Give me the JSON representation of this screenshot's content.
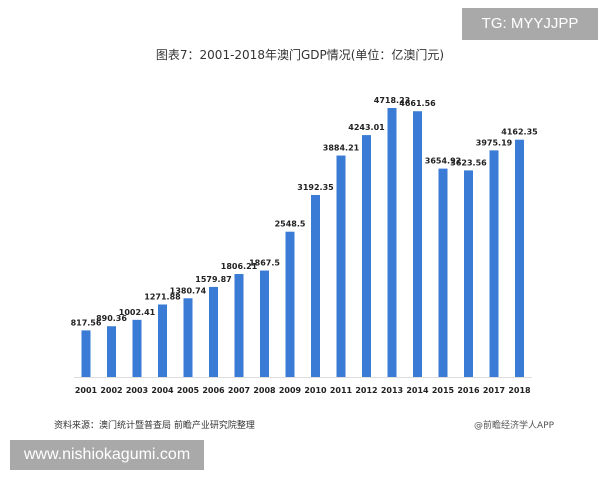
{
  "chart_data": {
    "type": "bar",
    "title": "图表7：2001-2018年澳门GDP情况(单位：亿澳门元)",
    "categories": [
      "2001",
      "2002",
      "2003",
      "2004",
      "2005",
      "2006",
      "2007",
      "2008",
      "2009",
      "2010",
      "2011",
      "2012",
      "2013",
      "2014",
      "2015",
      "2016",
      "2017",
      "2018"
    ],
    "values": [
      817.56,
      890.36,
      1002.41,
      1271.88,
      1380.74,
      1579.87,
      1806.21,
      1867.5,
      2548.5,
      3192.35,
      3884.21,
      4243.01,
      4718.23,
      4661.56,
      3654.92,
      3623.56,
      3975.19,
      4162.35
    ],
    "data_labels": [
      "817.56",
      "890.36",
      "1002.41",
      "1271.88",
      "1380.74",
      "1579.87",
      "1806.21",
      "1867.5",
      "2548.5",
      "3192.35",
      "3884.21",
      "4243.01",
      "4718.23",
      "4661.56",
      "3654.92",
      "3623.56",
      "3975.19",
      "4162.35"
    ],
    "xlabel": "",
    "ylabel": "",
    "ylim": [
      0,
      4718.23
    ],
    "grid": false,
    "bar_color": "#3a7bd5"
  },
  "footer": {
    "source": "资料来源：澳门统计暨普查局 前瞻产业研究院整理",
    "credit": "@前瞻经济学人APP"
  },
  "overlays": {
    "tg": "TG: MYYJJPP",
    "website": "www.nishiokagumi.com"
  }
}
